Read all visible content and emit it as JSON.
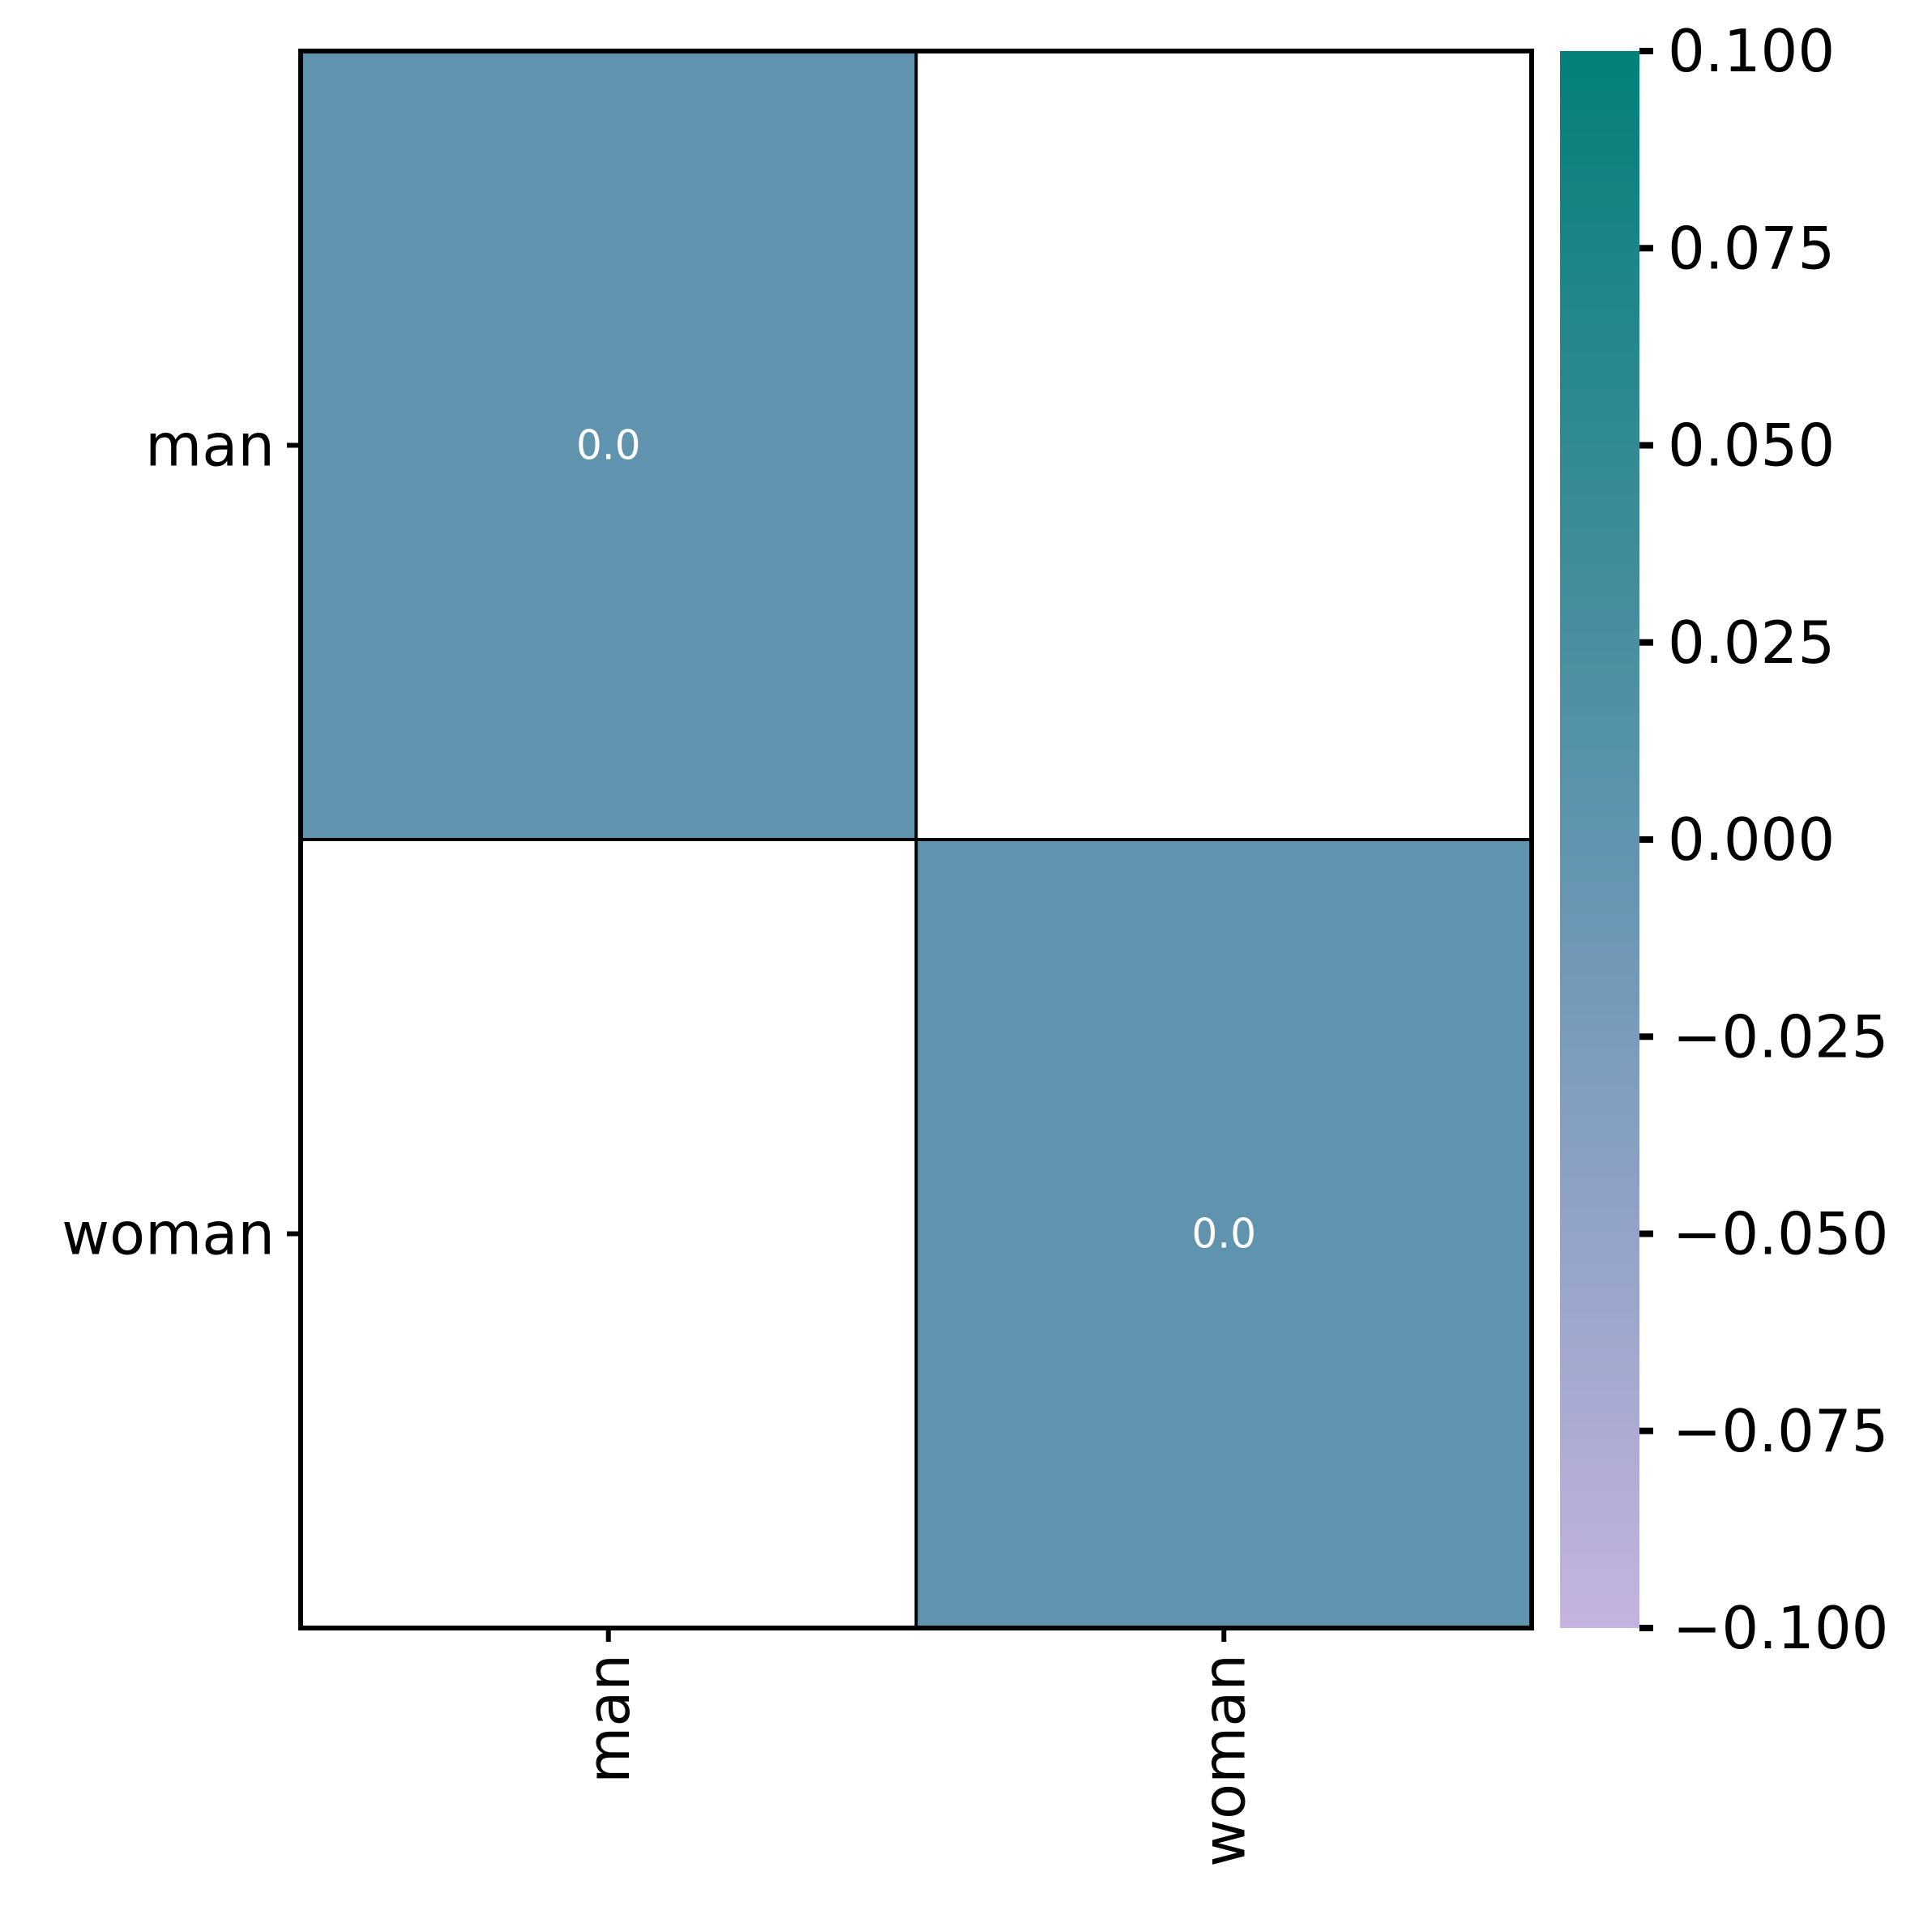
{
  "chart_data": {
    "type": "heatmap",
    "title": "",
    "xlabel": "",
    "ylabel": "",
    "x_labels": [
      "man",
      "woman"
    ],
    "y_labels": [
      "man",
      "woman"
    ],
    "cells": [
      [
        0.0,
        null
      ],
      [
        null,
        0.0
      ]
    ],
    "cell_labels": [
      [
        "0.0",
        ""
      ],
      [
        "",
        "0.0"
      ]
    ],
    "colorbar": {
      "range": [
        -0.1,
        0.1
      ],
      "ticks": [
        0.1,
        0.075,
        0.05,
        0.025,
        0.0,
        -0.025,
        -0.05,
        -0.075,
        -0.1
      ],
      "tick_labels": [
        "0.100",
        "0.075",
        "0.050",
        "0.025",
        "0.000",
        "−0.025",
        "−0.050",
        "−0.075",
        "−0.100"
      ],
      "color_low": "#c5b3e1",
      "color_mid": "#6094ae",
      "color_high": "#038079"
    },
    "missing_cell_color": "#ffffff",
    "grid_line_color": "#000000",
    "annotation_color": "#ffffff"
  }
}
